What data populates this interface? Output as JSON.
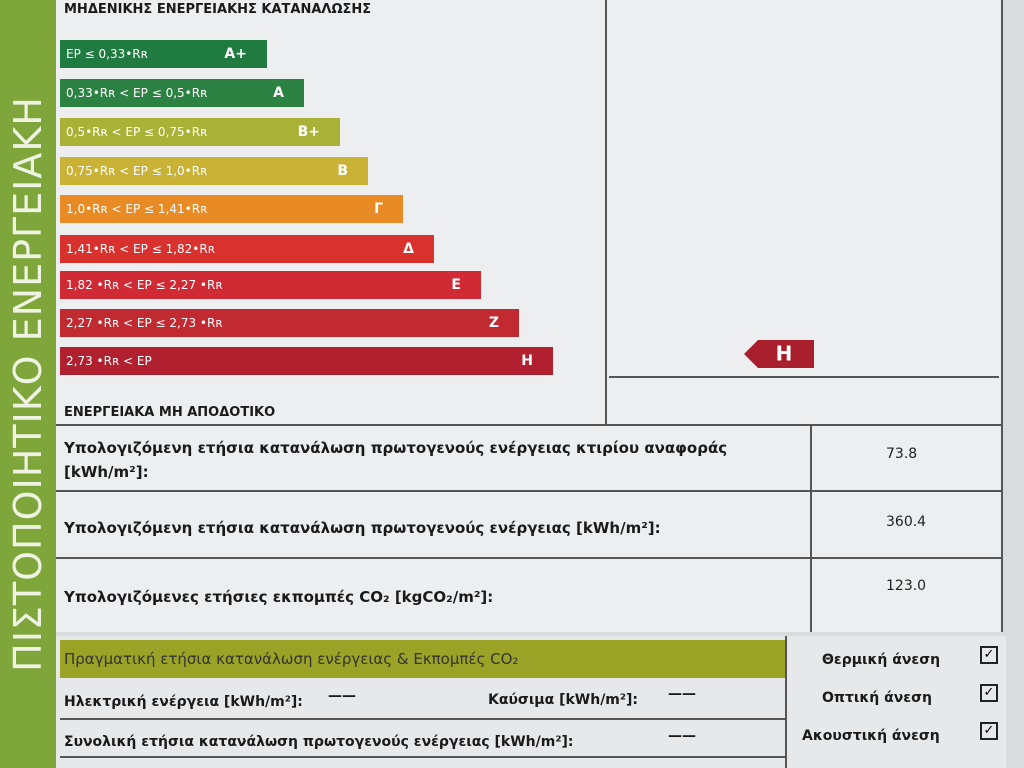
{
  "side_title": "ΠΙΣΤΟΠΟΙΗΤΙΚΟ ΕΝΕΡΓΕΙΑΚΗ",
  "scale": {
    "top_label": "ΜΗΔΕΝΙΚΗΣ ΕΝΕΡΓΕΙΑΚΗΣ ΚΑΤΑΝΑΛΩΣΗΣ",
    "bottom_label": "ΕΝΕΡΓΕΙΑΚΑ ΜΗ ΑΠΟΔΟΤΙΚΟ",
    "classes": [
      {
        "range": "EP ≤ 0,33•Rʀ",
        "label": "A+",
        "color": "#1f7b3f"
      },
      {
        "range": "0,33•Rʀ < EP ≤ 0,5•Rʀ",
        "label": "A",
        "color": "#2b8242"
      },
      {
        "range": "0,5•Rʀ < EP ≤ 0,75•Rʀ",
        "label": "B+",
        "color": "#a9b236"
      },
      {
        "range": "0,75•Rʀ < EP ≤ 1,0•Rʀ",
        "label": "B",
        "color": "#c9b236"
      },
      {
        "range": "1,0•Rʀ < EP ≤ 1,41•Rʀ",
        "label": "Γ",
        "color": "#e88b24"
      },
      {
        "range": "1,41•Rʀ < EP ≤ 1,82•Rʀ",
        "label": "Δ",
        "color": "#d9312d"
      },
      {
        "range": "1,82 •Rʀ < EP ≤ 2,27 •Rʀ",
        "label": "Ε",
        "color": "#d02a35"
      },
      {
        "range": "2,27 •Rʀ < EP ≤ 2,73 •Rʀ",
        "label": "Ζ",
        "color": "#c22a32"
      },
      {
        "range": "2,73 •Rʀ < EP",
        "label": "Η",
        "color": "#b0202f"
      }
    ],
    "rating": "Η"
  },
  "metrics": [
    {
      "label": "Υπολογιζόμενη ετήσια κατανάλωση πρωτογενούς ενέργειας κτιρίου αναφοράς [kWh/m²]:",
      "value": "73.8"
    },
    {
      "label": "Υπολογιζόμενη ετήσια κατανάλωση πρωτογενούς ενέργειας [kWh/m²]:",
      "value": "360.4"
    },
    {
      "label": "Υπολογιζόμενες ετήσιες εκπομπές CO₂ [kgCO₂/m²]:",
      "value": "123.0"
    }
  ],
  "actual": {
    "title": "Πραγματική ετήσια κατανάλωση ενέργειας & Εκπομπές CO₂",
    "electric_label": "Ηλεκτρική ενέργεια [kWh/m²]:",
    "electric_value": "——",
    "fuel_label": "Καύσιμα [kWh/m²]:",
    "fuel_value": "——",
    "total_label": "Συνολική ετήσια κατανάλωση πρωτογενούς ενέργειας [kWh/m²]:",
    "total_value": "——"
  },
  "comfort": [
    "Θερμική άνεση",
    "Οπτική άνεση",
    "Ακουστική άνεση"
  ]
}
